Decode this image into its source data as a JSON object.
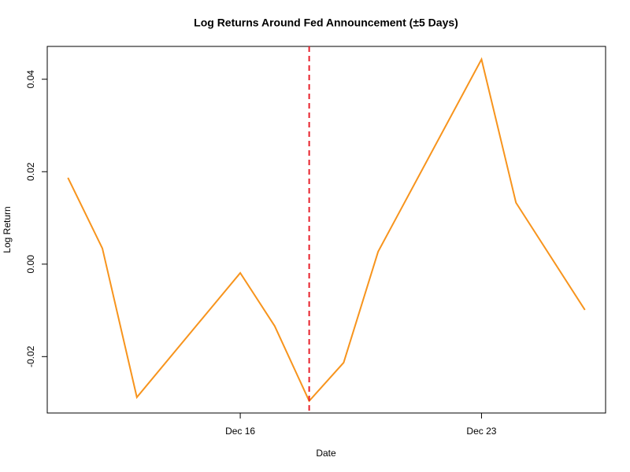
{
  "chart_data": {
    "type": "line",
    "title": "Log Returns Around Fed Announcement (±5 Days)",
    "x_label": "Date",
    "y_label": "Log Return",
    "x": [
      11,
      12,
      13,
      16,
      17,
      18,
      19,
      20,
      23,
      24,
      26
    ],
    "series": [
      {
        "color": "#f7941d",
        "values": [
          0.0187,
          0.0034,
          -0.0288,
          -0.0019,
          -0.0134,
          -0.0296,
          -0.0213,
          0.0027,
          0.0443,
          0.0133,
          -0.0099
        ]
      }
    ],
    "xlim": [
      10.4,
      26.6
    ],
    "xticks": [
      {
        "value": 16,
        "label": "Dec 16"
      },
      {
        "value": 23,
        "label": "Dec 23"
      }
    ],
    "ylim": [
      -0.0322,
      0.0471
    ],
    "yticks": [
      -0.02,
      {
        "value": 0,
        "label": "0.00"
      },
      0.02,
      0.04
    ],
    "vline": {
      "x": 18,
      "color": "#e8202a"
    }
  }
}
